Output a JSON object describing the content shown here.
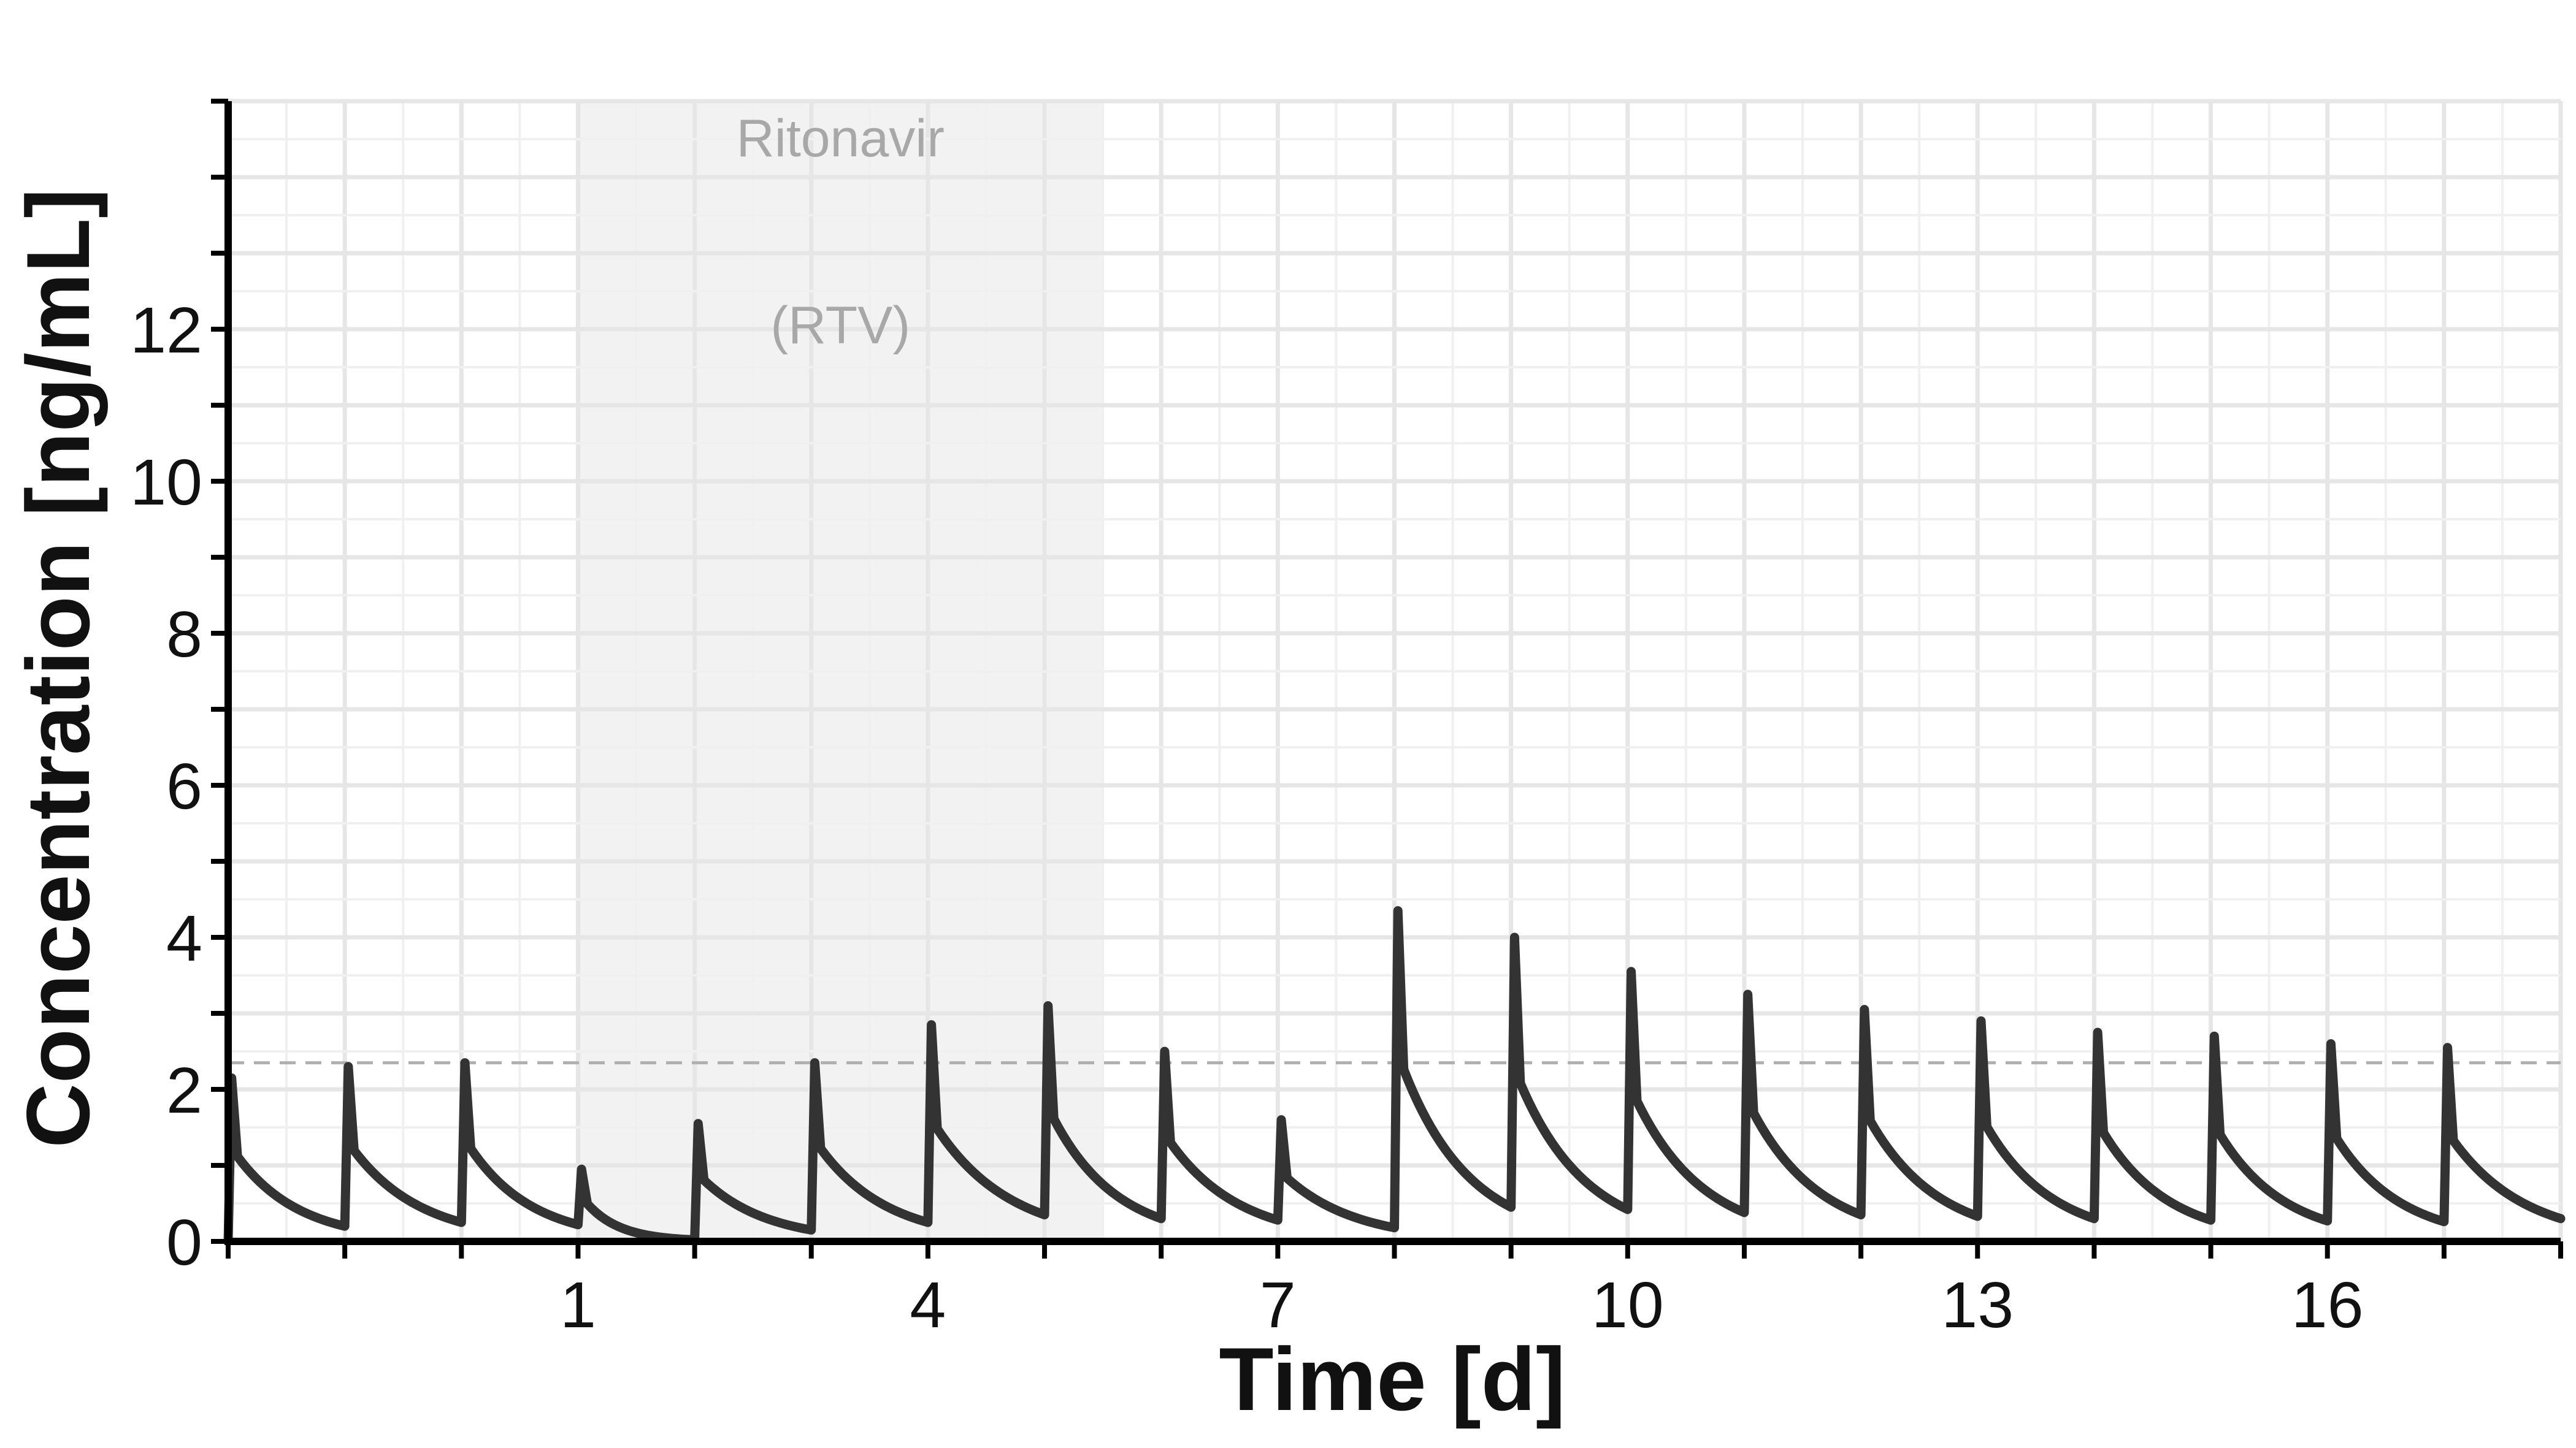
{
  "chart_data": {
    "type": "line",
    "xlabel": "Time [d]",
    "ylabel": "Concentration [ng/mL]",
    "xlim": [
      -2,
      18
    ],
    "ylim": [
      0,
      15
    ],
    "x_ticks": [
      1,
      4,
      7,
      10,
      13,
      16
    ],
    "y_ticks": [
      0,
      2,
      4,
      6,
      8,
      10,
      12
    ],
    "grid": true,
    "shaded_region": {
      "x_start": 1,
      "x_end": 5.5,
      "label_line1": "Ritonavir",
      "label_line2": "(RTV)"
    },
    "reference_line": {
      "y": 2.35,
      "style": "dashed"
    },
    "dose_times": [
      -2,
      -1,
      0,
      1,
      2,
      3,
      4,
      5,
      6,
      7,
      8,
      9,
      10,
      11,
      12,
      13,
      14,
      15,
      16,
      17
    ],
    "peaks": [
      2.15,
      2.3,
      2.35,
      0.95,
      1.55,
      2.35,
      2.85,
      3.1,
      2.5,
      1.6,
      4.35,
      4.0,
      3.55,
      3.25,
      3.05,
      2.9,
      2.75,
      2.7,
      2.6,
      2.55
    ],
    "troughs": [
      0.2,
      0.25,
      0.22,
      0.02,
      0.15,
      0.25,
      0.35,
      0.3,
      0.28,
      0.18,
      0.45,
      0.42,
      0.38,
      0.35,
      0.33,
      0.3,
      0.28,
      0.27,
      0.26,
      0.3
    ],
    "series": [
      {
        "color": "#333333"
      }
    ]
  }
}
